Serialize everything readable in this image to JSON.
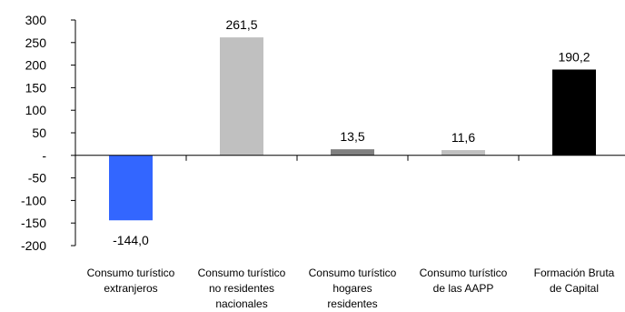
{
  "chart_data": {
    "type": "bar",
    "categories": [
      [
        "Consumo turístico",
        "extranjeros"
      ],
      [
        "Consumo turístico",
        "no residentes",
        "nacionales"
      ],
      [
        "Consumo turístico",
        "hogares",
        "residentes"
      ],
      [
        "Consumo turístico",
        "de las AAPP"
      ],
      [
        "Formación Bruta",
        "de Capital"
      ]
    ],
    "values": [
      -144.0,
      261.5,
      13.5,
      11.6,
      190.2
    ],
    "value_labels": [
      "-144,0",
      "261,5",
      "13,5",
      "11,6",
      "190,2"
    ],
    "bar_colors": [
      "#3366ff",
      "#c0c0c0",
      "#808080",
      "#c0c0c0",
      "#000000"
    ],
    "ylim": [
      -200,
      300
    ],
    "yticks": [
      300,
      250,
      200,
      150,
      100,
      50,
      0,
      -50,
      -100,
      -150,
      -200
    ],
    "ytick_labels": [
      "300",
      "250",
      "200",
      "150",
      "100",
      "50",
      "-",
      "-50",
      "-100",
      "-150",
      "-200"
    ],
    "grid": false,
    "legend": "none",
    "title": "",
    "xlabel": "",
    "ylabel": ""
  }
}
